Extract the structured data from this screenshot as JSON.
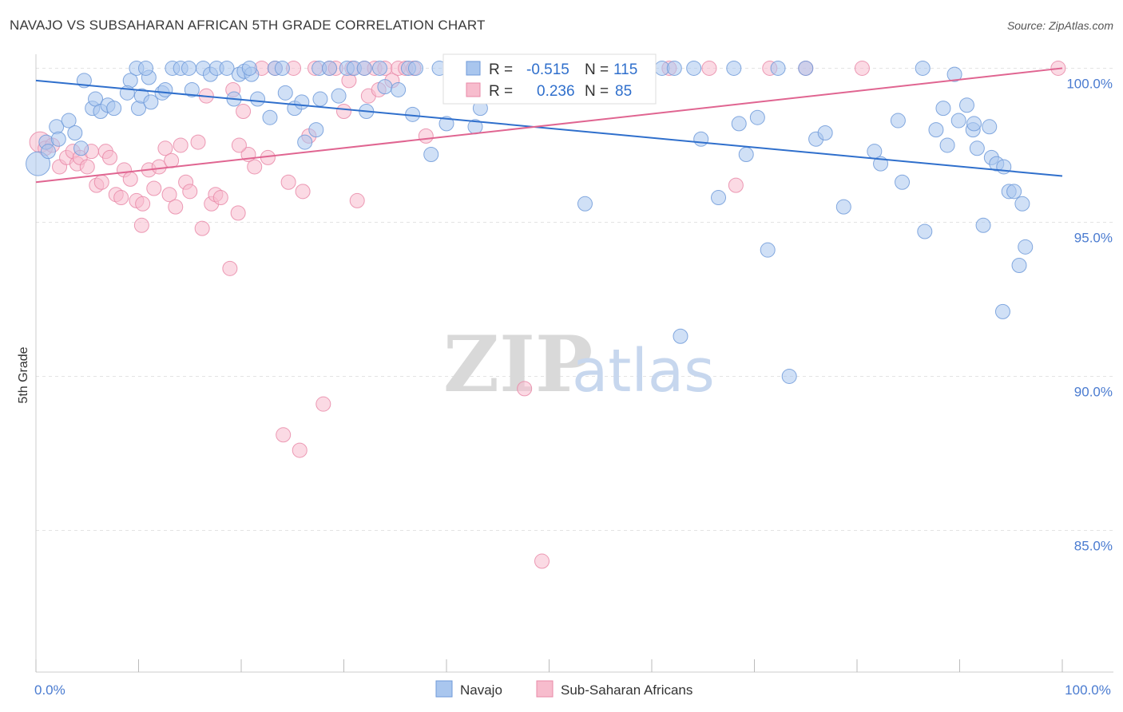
{
  "title": "NAVAJO VS SUBSAHARAN AFRICAN 5TH GRADE CORRELATION CHART",
  "source": "Source: ZipAtlas.com",
  "watermark": {
    "zip": "ZIP",
    "atlas": "atlas"
  },
  "colors": {
    "navajo_fill": "#a9c6ee",
    "navajo_stroke": "#6f9ad9",
    "navajo_line": "#2f6fcc",
    "ssa_fill": "#f7bccd",
    "ssa_stroke": "#e98aa8",
    "ssa_line": "#e06591",
    "axis_text": "#4a7bd0",
    "grid": "#e3e3e3"
  },
  "stats": {
    "r_label": "R =",
    "n_label": "N =",
    "navajo": {
      "r": "-0.515",
      "n": "115"
    },
    "ssa": {
      "r": "0.236",
      "n": "85"
    }
  },
  "chart_data": {
    "type": "scatter",
    "title": "NAVAJO VS SUBSAHARAN AFRICAN 5TH GRADE CORRELATION CHART",
    "xlabel": "",
    "ylabel": "5th Grade",
    "xlim": [
      0,
      100
    ],
    "ylim": [
      80.4,
      100.4
    ],
    "x_tick_labels": [
      {
        "value": 0,
        "label": "0.0%"
      },
      {
        "value": 100,
        "label": "100.0%"
      }
    ],
    "y_ticks": [
      {
        "value": 100,
        "label": "100.0%"
      },
      {
        "value": 95,
        "label": "95.0%"
      },
      {
        "value": 90,
        "label": "90.0%"
      },
      {
        "value": 85,
        "label": "85.0%"
      }
    ],
    "grid": true,
    "legend_position": "bottom-center",
    "series": [
      {
        "name": "Navajo",
        "trend": {
          "x": [
            0,
            100
          ],
          "y": [
            99.6,
            96.5
          ]
        },
        "points": [
          [
            0.2,
            96.9
          ],
          [
            1.0,
            97.6
          ],
          [
            1.2,
            97.3
          ],
          [
            2.0,
            98.1
          ],
          [
            2.2,
            97.7
          ],
          [
            3.2,
            98.3
          ],
          [
            3.8,
            97.9
          ],
          [
            4.4,
            97.4
          ],
          [
            4.7,
            99.6
          ],
          [
            5.5,
            98.7
          ],
          [
            5.8,
            99.0
          ],
          [
            6.3,
            98.6
          ],
          [
            7.0,
            98.8
          ],
          [
            7.6,
            98.7
          ],
          [
            9.2,
            99.6
          ],
          [
            8.9,
            99.2
          ],
          [
            9.8,
            100.0
          ],
          [
            10.0,
            98.7
          ],
          [
            10.3,
            99.1
          ],
          [
            11.0,
            99.7
          ],
          [
            11.2,
            98.9
          ],
          [
            10.7,
            100.0
          ],
          [
            12.3,
            99.2
          ],
          [
            12.6,
            99.3
          ],
          [
            13.3,
            100.0
          ],
          [
            14.1,
            100.0
          ],
          [
            14.9,
            100.0
          ],
          [
            15.2,
            99.3
          ],
          [
            16.3,
            100.0
          ],
          [
            17.0,
            99.8
          ],
          [
            17.6,
            100.0
          ],
          [
            18.6,
            100.0
          ],
          [
            19.3,
            99.0
          ],
          [
            19.8,
            99.8
          ],
          [
            20.3,
            99.9
          ],
          [
            21.0,
            99.8
          ],
          [
            20.8,
            100.0
          ],
          [
            21.6,
            99.0
          ],
          [
            22.8,
            98.4
          ],
          [
            23.3,
            100.0
          ],
          [
            24.0,
            100.0
          ],
          [
            24.3,
            99.2
          ],
          [
            25.2,
            98.7
          ],
          [
            25.9,
            98.9
          ],
          [
            26.2,
            97.6
          ],
          [
            27.3,
            98.0
          ],
          [
            27.6,
            100.0
          ],
          [
            28.6,
            100.0
          ],
          [
            27.7,
            99.0
          ],
          [
            29.5,
            99.1
          ],
          [
            30.3,
            100.0
          ],
          [
            31.0,
            100.0
          ],
          [
            32.0,
            100.0
          ],
          [
            32.2,
            98.6
          ],
          [
            33.5,
            100.0
          ],
          [
            34.0,
            99.4
          ],
          [
            35.3,
            99.3
          ],
          [
            36.3,
            100.0
          ],
          [
            36.7,
            98.5
          ],
          [
            37.0,
            100.0
          ],
          [
            38.5,
            97.2
          ],
          [
            39.3,
            100.0
          ],
          [
            40.0,
            98.2
          ],
          [
            41.0,
            100.0
          ],
          [
            42.0,
            100.0
          ],
          [
            42.8,
            98.1
          ],
          [
            43.3,
            98.7
          ],
          [
            43.4,
            100.0
          ],
          [
            44.0,
            100.0
          ],
          [
            45.3,
            100.0
          ],
          [
            47.0,
            100.0
          ],
          [
            49.0,
            100.0
          ],
          [
            50.0,
            100.0
          ],
          [
            52.0,
            100.0
          ],
          [
            53.0,
            100.0
          ],
          [
            52.4,
            99.4
          ],
          [
            53.5,
            95.6
          ],
          [
            61.0,
            100.0
          ],
          [
            62.2,
            100.0
          ],
          [
            64.1,
            100.0
          ],
          [
            62.8,
            91.3
          ],
          [
            64.8,
            97.7
          ],
          [
            66.5,
            95.8
          ],
          [
            68.0,
            100.0
          ],
          [
            68.5,
            98.2
          ],
          [
            69.2,
            97.2
          ],
          [
            70.3,
            98.4
          ],
          [
            71.3,
            94.1
          ],
          [
            72.3,
            100.0
          ],
          [
            73.4,
            90.0
          ],
          [
            75.0,
            100.0
          ],
          [
            76.0,
            97.7
          ],
          [
            76.9,
            97.9
          ],
          [
            78.7,
            95.5
          ],
          [
            81.7,
            97.3
          ],
          [
            82.3,
            96.9
          ],
          [
            84.0,
            98.3
          ],
          [
            84.4,
            96.3
          ],
          [
            86.4,
            100.0
          ],
          [
            86.6,
            94.7
          ],
          [
            87.7,
            98.0
          ],
          [
            88.4,
            98.7
          ],
          [
            88.8,
            97.5
          ],
          [
            89.5,
            99.8
          ],
          [
            89.9,
            98.3
          ],
          [
            90.7,
            98.8
          ],
          [
            91.3,
            98.0
          ],
          [
            91.4,
            98.2
          ],
          [
            91.7,
            97.4
          ],
          [
            92.9,
            98.1
          ],
          [
            92.3,
            94.9
          ],
          [
            93.1,
            97.1
          ],
          [
            93.6,
            96.9
          ],
          [
            94.3,
            96.8
          ],
          [
            94.2,
            92.1
          ],
          [
            94.8,
            96.0
          ],
          [
            95.3,
            96.0
          ],
          [
            95.8,
            93.6
          ],
          [
            96.1,
            95.6
          ],
          [
            96.4,
            94.2
          ]
        ]
      },
      {
        "name": "Sub-Saharan Africans",
        "trend": {
          "x": [
            0,
            100
          ],
          "y": [
            96.3,
            100.0
          ]
        },
        "points": [
          [
            0.4,
            97.6
          ],
          [
            0.9,
            97.4
          ],
          [
            1.6,
            97.5
          ],
          [
            2.3,
            96.8
          ],
          [
            3.0,
            97.1
          ],
          [
            3.6,
            97.3
          ],
          [
            4.0,
            96.9
          ],
          [
            4.3,
            97.1
          ],
          [
            5.0,
            96.8
          ],
          [
            5.4,
            97.3
          ],
          [
            5.9,
            96.2
          ],
          [
            6.4,
            96.3
          ],
          [
            6.8,
            97.3
          ],
          [
            7.2,
            97.1
          ],
          [
            7.8,
            95.9
          ],
          [
            8.3,
            95.8
          ],
          [
            8.6,
            96.7
          ],
          [
            9.2,
            96.4
          ],
          [
            9.8,
            95.7
          ],
          [
            10.3,
            94.9
          ],
          [
            10.4,
            95.6
          ],
          [
            11.0,
            96.7
          ],
          [
            11.5,
            96.1
          ],
          [
            12.0,
            96.8
          ],
          [
            12.6,
            97.4
          ],
          [
            13.0,
            95.9
          ],
          [
            13.6,
            95.5
          ],
          [
            14.1,
            97.5
          ],
          [
            14.6,
            96.3
          ],
          [
            15.0,
            96.0
          ],
          [
            15.8,
            97.6
          ],
          [
            16.2,
            94.8
          ],
          [
            16.6,
            99.1
          ],
          [
            17.1,
            95.6
          ],
          [
            17.5,
            95.9
          ],
          [
            18.0,
            95.8
          ],
          [
            18.9,
            93.5
          ],
          [
            19.2,
            99.3
          ],
          [
            19.7,
            95.3
          ],
          [
            20.2,
            98.6
          ],
          [
            20.7,
            97.2
          ],
          [
            21.3,
            96.8
          ],
          [
            22.0,
            100.0
          ],
          [
            22.6,
            97.1
          ],
          [
            23.3,
            100.0
          ],
          [
            24.1,
            88.1
          ],
          [
            24.6,
            96.3
          ],
          [
            25.1,
            100.0
          ],
          [
            25.7,
            87.6
          ],
          [
            26.0,
            96.0
          ],
          [
            26.6,
            97.8
          ],
          [
            27.2,
            100.0
          ],
          [
            28.0,
            89.1
          ],
          [
            28.6,
            100.0
          ],
          [
            29.2,
            100.0
          ],
          [
            30.0,
            98.6
          ],
          [
            30.5,
            99.6
          ],
          [
            30.8,
            100.0
          ],
          [
            31.3,
            95.7
          ],
          [
            32.0,
            100.0
          ],
          [
            32.4,
            99.1
          ],
          [
            33.0,
            100.0
          ],
          [
            33.4,
            99.3
          ],
          [
            34.0,
            100.0
          ],
          [
            34.7,
            99.6
          ],
          [
            35.3,
            100.0
          ],
          [
            36.0,
            100.0
          ],
          [
            38.0,
            97.8
          ],
          [
            42.0,
            100.0
          ],
          [
            47.0,
            100.0
          ],
          [
            47.6,
            89.6
          ],
          [
            49.3,
            84.0
          ],
          [
            52.0,
            100.0
          ],
          [
            55.0,
            100.0
          ],
          [
            58.0,
            100.0
          ],
          [
            61.7,
            100.0
          ],
          [
            65.6,
            100.0
          ],
          [
            68.2,
            96.2
          ],
          [
            71.5,
            100.0
          ],
          [
            75.0,
            100.0
          ],
          [
            80.5,
            100.0
          ],
          [
            99.6,
            100.0
          ],
          [
            36.8,
            100.0
          ],
          [
            13.2,
            97.0
          ],
          [
            19.8,
            97.5
          ]
        ]
      }
    ]
  },
  "legend": {
    "items": [
      {
        "label": "Navajo"
      },
      {
        "label": "Sub-Saharan Africans"
      }
    ]
  }
}
